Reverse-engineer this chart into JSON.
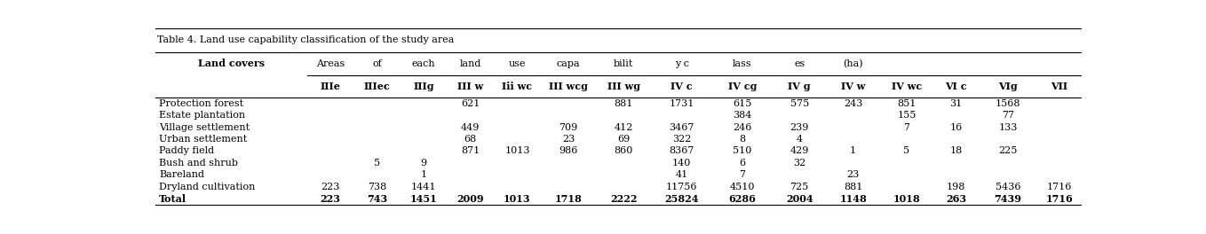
{
  "title": "Table 4. Land use capability classification of the study area",
  "header_row1": [
    "Land covers",
    "Areas",
    "of",
    "each",
    "land",
    "use",
    "capa",
    "bilit",
    "y c",
    "lass",
    "es",
    "(ha)",
    "",
    "",
    "",
    ""
  ],
  "header_row2": [
    "",
    "IIIe",
    "IIIec",
    "IIIg",
    "III w",
    "Iii wc",
    "III wcg",
    "III wg",
    "IV c",
    "IV cg",
    "IV g",
    "IV w",
    "IV wc",
    "VI c",
    "VIg",
    "VII"
  ],
  "rows": [
    [
      "Protection forest",
      "",
      "",
      "",
      "621",
      "",
      "",
      "881",
      "1731",
      "615",
      "575",
      "243",
      "851",
      "31",
      "1568",
      ""
    ],
    [
      "Estate plantation",
      "",
      "",
      "",
      "",
      "",
      "",
      "",
      "",
      "384",
      "",
      "",
      "155",
      "",
      "77",
      ""
    ],
    [
      "Village settlement",
      "",
      "",
      "",
      "449",
      "",
      "709",
      "412",
      "3467",
      "246",
      "239",
      "",
      "7",
      "16",
      "133",
      ""
    ],
    [
      "Urban settlement",
      "",
      "",
      "",
      "68",
      "",
      "23",
      "69",
      "322",
      "8",
      "4",
      "",
      "",
      "",
      "",
      ""
    ],
    [
      "Paddy field",
      "",
      "",
      "",
      "871",
      "1013",
      "986",
      "860",
      "8367",
      "510",
      "429",
      "1",
      "5",
      "18",
      "225",
      ""
    ],
    [
      "Bush and shrub",
      "",
      "5",
      "9",
      "",
      "",
      "",
      "",
      "140",
      "6",
      "32",
      "",
      "",
      "",
      "",
      ""
    ],
    [
      "Bareland",
      "",
      "",
      "1",
      "",
      "",
      "",
      "",
      "41",
      "7",
      "",
      "23",
      "",
      "",
      "",
      ""
    ],
    [
      "Dryland cultivation",
      "223",
      "738",
      "1441",
      "",
      "",
      "",
      "",
      "11756",
      "4510",
      "725",
      "881",
      "",
      "198",
      "5436",
      "1716"
    ],
    [
      "Total",
      "223",
      "743",
      "1451",
      "2009",
      "1013",
      "1718",
      "2222",
      "25824",
      "6286",
      "2004",
      "1148",
      "1018",
      "263",
      "7439",
      "1716"
    ]
  ],
  "col_widths_rel": [
    1.75,
    0.54,
    0.54,
    0.54,
    0.54,
    0.54,
    0.64,
    0.64,
    0.7,
    0.7,
    0.62,
    0.62,
    0.62,
    0.52,
    0.68,
    0.5
  ],
  "background_color": "#ffffff",
  "font_size": 8.0,
  "header_font_size": 8.0
}
